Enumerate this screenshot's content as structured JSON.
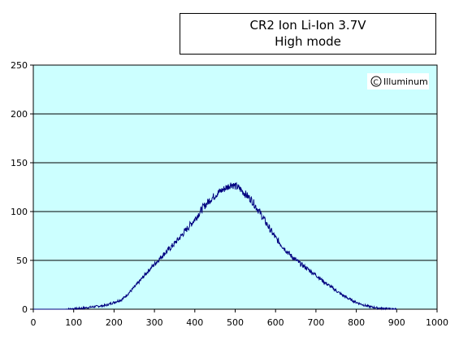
{
  "title_lines": [
    "CR2 Ion Li-Ion 3.7V",
    "High mode"
  ],
  "watermark": "Illuminum",
  "colors": {
    "plot_bg": "#ccffff",
    "line": "#000080",
    "grid": "#000000"
  },
  "chart_data": {
    "type": "line",
    "title": "CR2 Ion Li-Ion 3.7V High mode",
    "xlabel": "",
    "ylabel": "",
    "xlim": [
      0,
      1000
    ],
    "ylim": [
      0,
      250
    ],
    "x_ticks": [
      "0",
      "100",
      "200",
      "300",
      "400",
      "500",
      "600",
      "700",
      "800",
      "900",
      "1000"
    ],
    "y_ticks": [
      "0",
      "50",
      "100",
      "150",
      "200",
      "250"
    ],
    "grid": "horizontal",
    "series": [
      {
        "x": [
          0,
          80,
          100,
          120,
          140,
          160,
          180,
          200,
          220,
          240,
          260,
          280,
          300,
          320,
          340,
          360,
          380,
          400,
          420,
          440,
          460,
          480,
          490,
          500,
          510,
          520,
          540,
          560,
          580,
          600,
          620,
          640,
          660,
          680,
          700,
          720,
          740,
          760,
          780,
          800,
          820,
          840,
          860,
          880,
          900,
          1000
        ],
        "y": [
          0,
          0,
          0.5,
          1,
          2,
          3,
          4,
          7,
          10,
          18,
          27,
          37,
          46,
          55,
          63,
          72,
          82,
          92,
          104,
          113,
          120,
          125,
          128,
          126,
          124,
          120,
          112,
          100,
          86,
          73,
          63,
          54,
          47,
          41,
          35,
          28,
          22,
          16,
          11,
          7,
          4,
          2,
          1,
          0.5,
          0,
          0
        ]
      }
    ]
  }
}
